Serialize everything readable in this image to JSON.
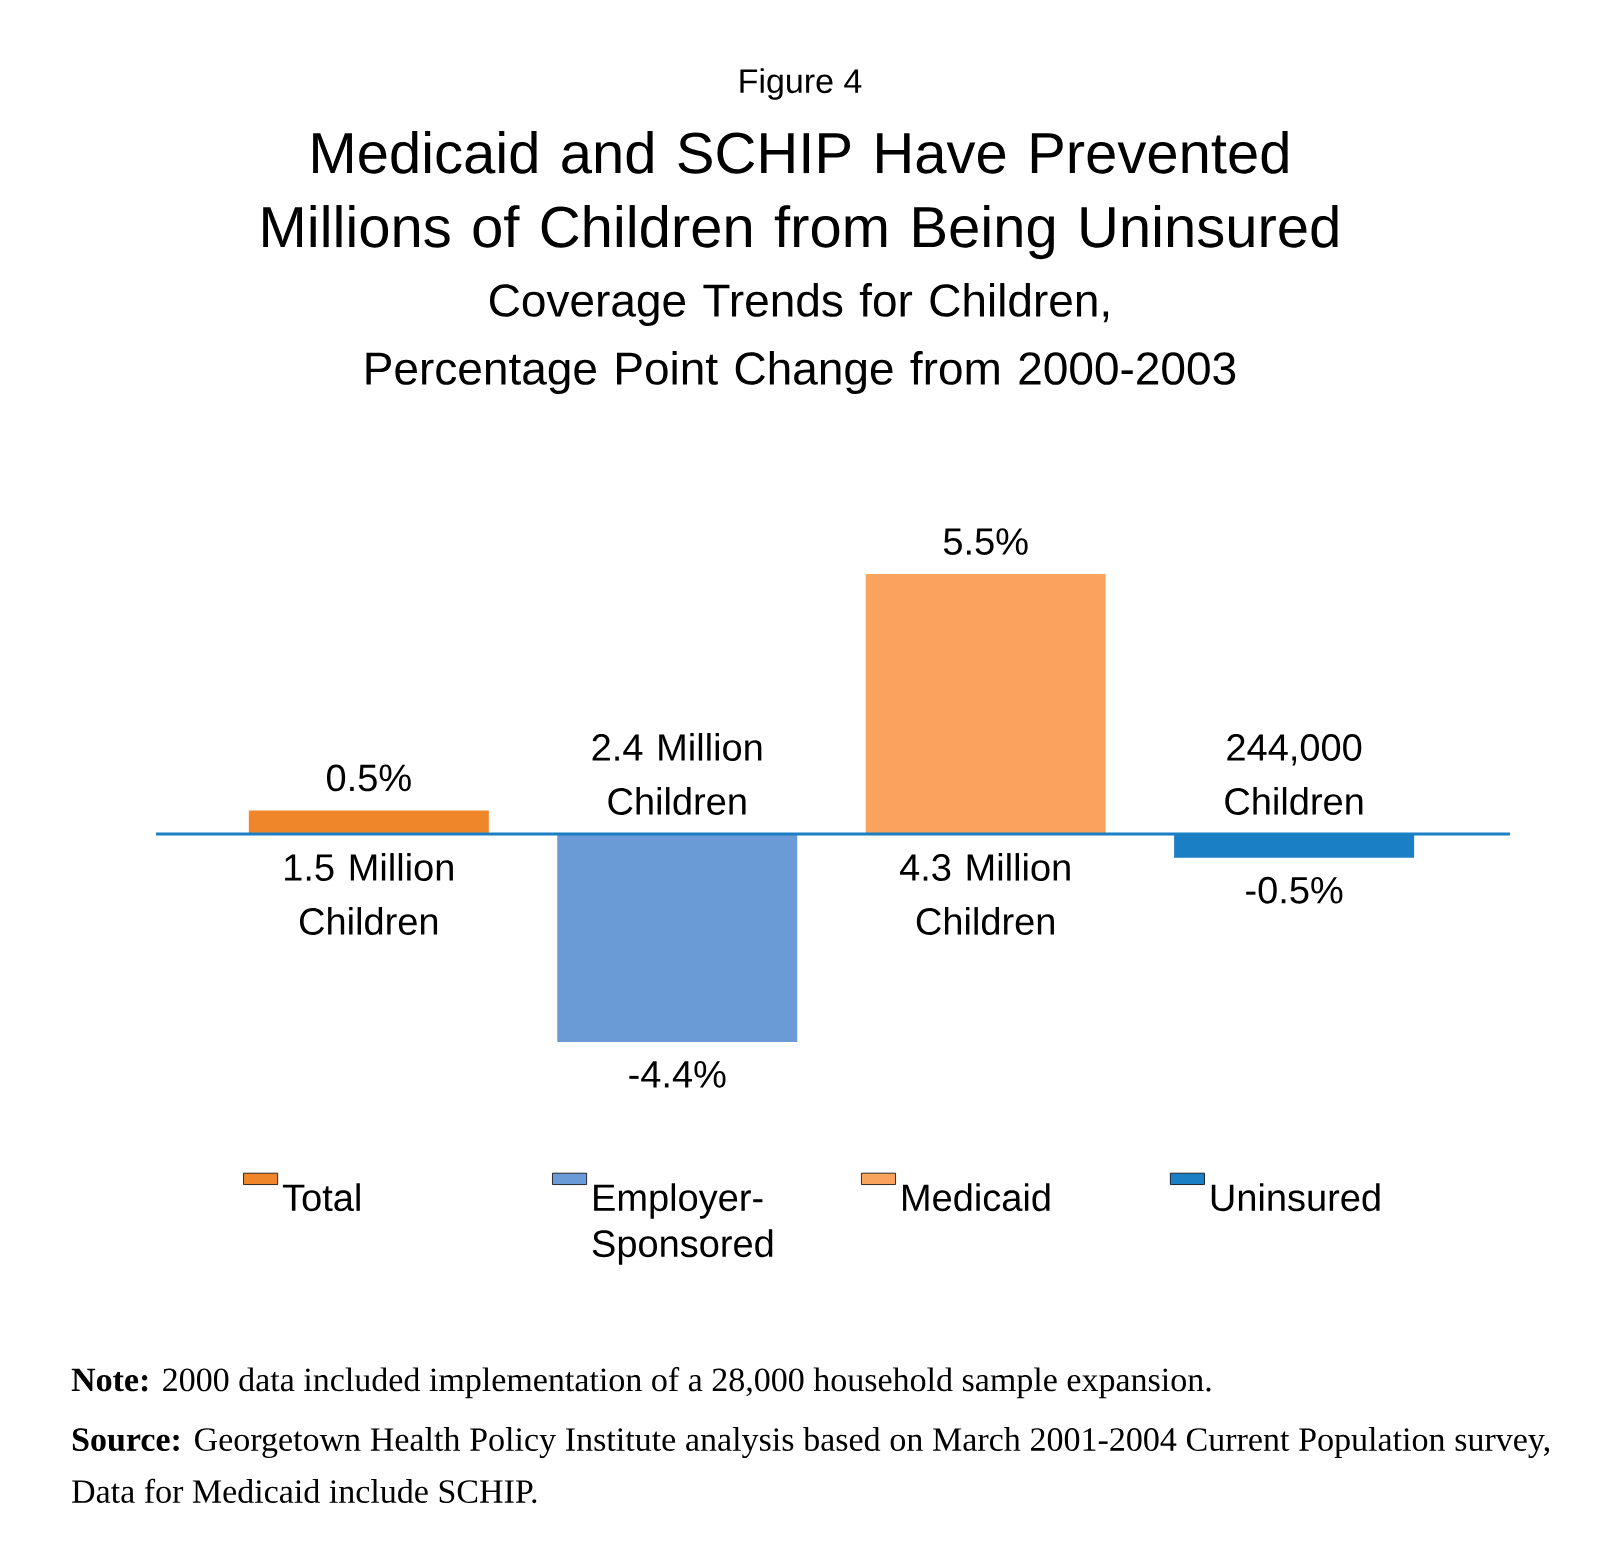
{
  "chart_data": {
    "type": "bar",
    "title": "Medicaid and SCHIP Have Prevented Millions of Children from Being Uninsured",
    "subtitle": "Coverage Trends for Children, Percentage Point Change from 2000-2003",
    "categories": [
      null,
      null,
      null,
      null
    ],
    "stacked": true,
    "series": [
      {
        "name": "Total",
        "color": "#f0862a",
        "values": [
          0.5,
          null,
          null,
          null
        ],
        "value_labels": [
          "0.5%",
          null,
          null,
          null
        ]
      },
      {
        "name": "Employer-Sponsored",
        "color": "#6b9bd6",
        "values": [
          null,
          -4.4,
          null,
          null
        ],
        "value_labels": [
          null,
          "-4.4%",
          null,
          null
        ]
      },
      {
        "name": "Medicaid",
        "color": "#f9a35c",
        "values": [
          null,
          null,
          5.5,
          null
        ],
        "value_labels": [
          null,
          null,
          "5.5%",
          null
        ]
      },
      {
        "name": "Uninsured",
        "color": "#1a7fc4",
        "values": [
          null,
          null,
          null,
          -0.5
        ],
        "value_labels": [
          null,
          null,
          null,
          "-0.5%"
        ]
      }
    ],
    "legend": "bottom",
    "ref_lines": [
      {
        "axis": "y",
        "value": 0,
        "color": "#1a7fc4"
      }
    ],
    "annotations": [
      "Figure 4",
      "1.5 Million Children",
      "2.4 Million Children",
      "4.3 Million Children",
      "244,000 Children",
      "**Note:** 2000 data included implementation of a 28,000 household sample expansion.",
      "**Source:** Georgetown Health Policy Institute analysis based on March 2001-2004 Current Population survey, Data for Medicaid include SCHIP."
    ]
  }
}
